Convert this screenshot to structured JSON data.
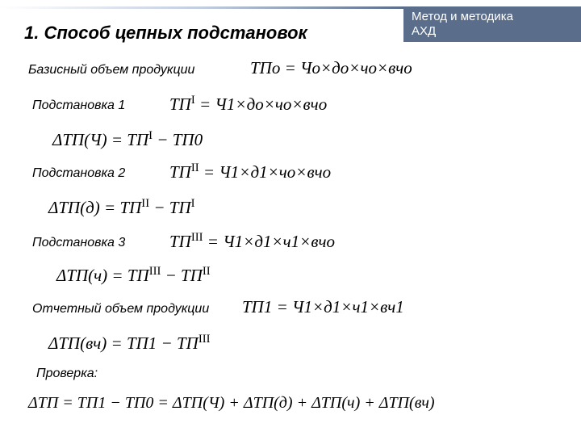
{
  "header": {
    "line1": "Метод и методика",
    "line2": "АХД"
  },
  "title": "1. Способ цепных подстановок",
  "labels": {
    "base": "Базисный объем продукции",
    "sub1": "Подстановка 1",
    "sub2": "Подстановка 2",
    "sub3": "Подстановка 3",
    "report": "Отчетный объем продукции",
    "check": "Проверка:"
  },
  "formulas": {
    "base": "ТПо = Чо×до×чо×вчо",
    "sub1": "ТП<sup>I</sup> = Ч1×до×чо×вчо",
    "delta1": "ΔТП(Ч) = ТП<sup>I</sup> − ТП0",
    "sub2": "ТП<sup>II</sup> = Ч1×д1×чо×вчо",
    "delta2": "ΔТП(д) = ТП<sup>II</sup> − ТП<sup>I</sup>",
    "sub3": "ТП<sup>III</sup> = Ч1×д1×ч1×вчо",
    "delta3": "ΔТП(ч) = ТП<sup>III</sup> − ТП<sup>II</sup>",
    "report": "ТП1 = Ч1×д1×ч1×вч1",
    "delta4": "ΔТП(вч) = ТП1 − ТП<sup>III</sup>",
    "check": "ΔТП = ТП1 − ТП0 = ΔТП(Ч) + ΔТП(д) + ΔТП(ч) + ΔТП(вч)"
  },
  "layout": {
    "title_fontsize": 22,
    "label_fontsize": 16,
    "formula_fontsize": 21,
    "colors": {
      "bg": "#ffffff",
      "text": "#000000",
      "header_bg": "#5a6e8c",
      "header_text": "#ffffff"
    }
  }
}
